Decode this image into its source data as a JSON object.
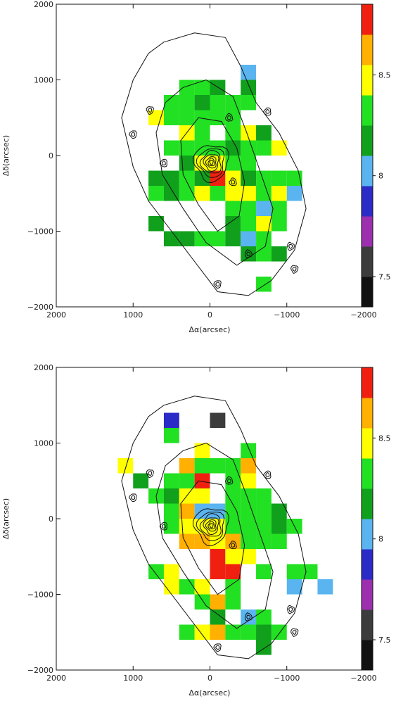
{
  "colors": {
    "black": "#111111",
    "darkgray": "#3c3c3c",
    "purple": "#9b2fae",
    "blue": "#2b2bc8",
    "lightblue": "#5ab4f0",
    "darkgreen": "#10a01c",
    "green": "#22e022",
    "yellow": "#ffff00",
    "orange": "#ffb000",
    "red": "#f02010"
  },
  "chart_data": [
    {
      "type": "heatmap",
      "title": "",
      "xlabel": "Δα(arcsec)",
      "ylabel": "Δδ(arcsec)",
      "xlim": [
        2000,
        -2000
      ],
      "ylim": [
        -2000,
        2000
      ],
      "xticks": [
        2000,
        1000,
        0,
        -1000,
        -2000
      ],
      "yticks": [
        -2000,
        -1000,
        0,
        1000,
        2000
      ],
      "xtick_labels": [
        "2000",
        "1000",
        "0",
        "−1000",
        "−2000"
      ],
      "ytick_labels": [
        "−2000",
        "−1000",
        "0",
        "1000",
        "2000"
      ],
      "colorbar": {
        "range": [
          7.35,
          8.85
        ],
        "ticks": [
          7.5,
          8,
          8.5
        ],
        "tick_labels": [
          "7.5",
          "8",
          "8.5"
        ],
        "bands": [
          "black",
          "darkgray",
          "purple",
          "blue",
          "lightblue",
          "darkgreen",
          "green",
          "yellow",
          "orange",
          "red"
        ]
      },
      "cell_size_arcsec": 200,
      "cells": [
        {
          "x": -500,
          "y": 1100,
          "c": "lightblue"
        },
        {
          "x": 300,
          "y": 900,
          "c": "green"
        },
        {
          "x": 100,
          "y": 900,
          "c": "green"
        },
        {
          "x": -100,
          "y": 900,
          "c": "darkgreen"
        },
        {
          "x": -500,
          "y": 900,
          "c": "darkgreen"
        },
        {
          "x": 500,
          "y": 700,
          "c": "green"
        },
        {
          "x": 300,
          "y": 700,
          "c": "green"
        },
        {
          "x": 100,
          "y": 700,
          "c": "darkgreen"
        },
        {
          "x": -100,
          "y": 700,
          "c": "green"
        },
        {
          "x": -300,
          "y": 700,
          "c": "green"
        },
        {
          "x": -500,
          "y": 700,
          "c": "green"
        },
        {
          "x": 700,
          "y": 500,
          "c": "yellow"
        },
        {
          "x": 500,
          "y": 500,
          "c": "green"
        },
        {
          "x": 300,
          "y": 500,
          "c": "green"
        },
        {
          "x": 100,
          "y": 500,
          "c": "green"
        },
        {
          "x": -100,
          "y": 500,
          "c": "green"
        },
        {
          "x": -300,
          "y": 500,
          "c": "green"
        },
        {
          "x": -500,
          "y": 300,
          "c": "yellow"
        },
        {
          "x": -700,
          "y": 300,
          "c": "darkgreen"
        },
        {
          "x": 300,
          "y": 300,
          "c": "yellow"
        },
        {
          "x": 100,
          "y": 300,
          "c": "green"
        },
        {
          "x": -300,
          "y": 300,
          "c": "green"
        },
        {
          "x": 500,
          "y": 100,
          "c": "green"
        },
        {
          "x": 300,
          "y": 100,
          "c": "green"
        },
        {
          "x": 100,
          "y": 100,
          "c": "green"
        },
        {
          "x": -100,
          "y": 100,
          "c": "green"
        },
        {
          "x": -300,
          "y": 100,
          "c": "darkgreen"
        },
        {
          "x": -500,
          "y": 100,
          "c": "green"
        },
        {
          "x": -700,
          "y": 100,
          "c": "green"
        },
        {
          "x": -900,
          "y": 100,
          "c": "yellow"
        },
        {
          "x": 300,
          "y": -100,
          "c": "darkgreen"
        },
        {
          "x": 100,
          "y": -100,
          "c": "yellow"
        },
        {
          "x": -100,
          "y": -100,
          "c": "yellow"
        },
        {
          "x": -300,
          "y": -100,
          "c": "green"
        },
        {
          "x": -500,
          "y": -100,
          "c": "green"
        },
        {
          "x": 500,
          "y": -300,
          "c": "darkgreen"
        },
        {
          "x": 300,
          "y": -300,
          "c": "green"
        },
        {
          "x": 100,
          "y": -300,
          "c": "darkgreen"
        },
        {
          "x": -100,
          "y": -300,
          "c": "red"
        },
        {
          "x": -300,
          "y": -300,
          "c": "yellow"
        },
        {
          "x": -500,
          "y": -300,
          "c": "darkgreen"
        },
        {
          "x": -700,
          "y": -300,
          "c": "green"
        },
        {
          "x": -900,
          "y": -300,
          "c": "green"
        },
        {
          "x": -1100,
          "y": -300,
          "c": "green"
        },
        {
          "x": 700,
          "y": -300,
          "c": "darkgreen"
        },
        {
          "x": 700,
          "y": -500,
          "c": "green"
        },
        {
          "x": 500,
          "y": -500,
          "c": "darkgreen"
        },
        {
          "x": 300,
          "y": -500,
          "c": "green"
        },
        {
          "x": 100,
          "y": -500,
          "c": "yellow"
        },
        {
          "x": -100,
          "y": -500,
          "c": "green"
        },
        {
          "x": -300,
          "y": -500,
          "c": "yellow"
        },
        {
          "x": -500,
          "y": -500,
          "c": "yellow"
        },
        {
          "x": -700,
          "y": -500,
          "c": "green"
        },
        {
          "x": -900,
          "y": -500,
          "c": "yellow"
        },
        {
          "x": -1100,
          "y": -500,
          "c": "lightblue"
        },
        {
          "x": -300,
          "y": -700,
          "c": "green"
        },
        {
          "x": -500,
          "y": -700,
          "c": "green"
        },
        {
          "x": -700,
          "y": -700,
          "c": "lightblue"
        },
        {
          "x": -900,
          "y": -700,
          "c": "green"
        },
        {
          "x": 700,
          "y": -900,
          "c": "darkgreen"
        },
        {
          "x": -300,
          "y": -900,
          "c": "darkgreen"
        },
        {
          "x": -500,
          "y": -900,
          "c": "green"
        },
        {
          "x": -700,
          "y": -900,
          "c": "yellow"
        },
        {
          "x": -900,
          "y": -900,
          "c": "green"
        },
        {
          "x": 500,
          "y": -1100,
          "c": "darkgreen"
        },
        {
          "x": 300,
          "y": -1100,
          "c": "darkgreen"
        },
        {
          "x": 100,
          "y": -1100,
          "c": "green"
        },
        {
          "x": -100,
          "y": -1100,
          "c": "green"
        },
        {
          "x": -300,
          "y": -1100,
          "c": "darkgreen"
        },
        {
          "x": -500,
          "y": -1100,
          "c": "lightblue"
        },
        {
          "x": -700,
          "y": -1100,
          "c": "green"
        },
        {
          "x": -500,
          "y": -1300,
          "c": "darkgreen"
        },
        {
          "x": -700,
          "y": -1300,
          "c": "green"
        },
        {
          "x": -900,
          "y": -1300,
          "c": "darkgreen"
        },
        {
          "x": -700,
          "y": -1700,
          "c": "green"
        }
      ]
    },
    {
      "type": "heatmap",
      "title": "",
      "xlabel": "Δα(arcsec)",
      "ylabel": "Δδ(arcsec)",
      "xlim": [
        2000,
        -2000
      ],
      "ylim": [
        -2000,
        2000
      ],
      "xticks": [
        2000,
        1000,
        0,
        -1000,
        -2000
      ],
      "yticks": [
        -2000,
        -1000,
        0,
        1000,
        2000
      ],
      "xtick_labels": [
        "2000",
        "1000",
        "0",
        "−1000",
        "−2000"
      ],
      "ytick_labels": [
        "−2000",
        "−1000",
        "0",
        "1000",
        "2000"
      ],
      "colorbar": {
        "range": [
          7.35,
          8.85
        ],
        "ticks": [
          7.5,
          8,
          8.5
        ],
        "tick_labels": [
          "7.5",
          "8",
          "8.5"
        ],
        "bands": [
          "black",
          "darkgray",
          "purple",
          "blue",
          "lightblue",
          "darkgreen",
          "green",
          "yellow",
          "orange",
          "red"
        ]
      },
      "cell_size_arcsec": 200,
      "cells": [
        {
          "x": 500,
          "y": 1300,
          "c": "blue"
        },
        {
          "x": -100,
          "y": 1300,
          "c": "darkgray"
        },
        {
          "x": 500,
          "y": 1100,
          "c": "green"
        },
        {
          "x": 100,
          "y": 900,
          "c": "yellow"
        },
        {
          "x": -500,
          "y": 900,
          "c": "green"
        },
        {
          "x": 1100,
          "y": 700,
          "c": "yellow"
        },
        {
          "x": 300,
          "y": 700,
          "c": "orange"
        },
        {
          "x": 100,
          "y": 700,
          "c": "green"
        },
        {
          "x": -100,
          "y": 700,
          "c": "green"
        },
        {
          "x": -300,
          "y": 700,
          "c": "green"
        },
        {
          "x": -500,
          "y": 700,
          "c": "orange"
        },
        {
          "x": 900,
          "y": 500,
          "c": "darkgreen"
        },
        {
          "x": 500,
          "y": 500,
          "c": "green"
        },
        {
          "x": 300,
          "y": 500,
          "c": "green"
        },
        {
          "x": 100,
          "y": 500,
          "c": "red"
        },
        {
          "x": -300,
          "y": 500,
          "c": "green"
        },
        {
          "x": -500,
          "y": 500,
          "c": "yellow"
        },
        {
          "x": 700,
          "y": 300,
          "c": "green"
        },
        {
          "x": 500,
          "y": 300,
          "c": "darkgreen"
        },
        {
          "x": 300,
          "y": 300,
          "c": "yellow"
        },
        {
          "x": 100,
          "y": 300,
          "c": "yellow"
        },
        {
          "x": -300,
          "y": 300,
          "c": "green"
        },
        {
          "x": -500,
          "y": 300,
          "c": "green"
        },
        {
          "x": -700,
          "y": 300,
          "c": "green"
        },
        {
          "x": 500,
          "y": 100,
          "c": "green"
        },
        {
          "x": 300,
          "y": 100,
          "c": "orange"
        },
        {
          "x": 100,
          "y": 100,
          "c": "lightblue"
        },
        {
          "x": -100,
          "y": 100,
          "c": "lightblue"
        },
        {
          "x": -300,
          "y": 100,
          "c": "green"
        },
        {
          "x": -500,
          "y": 100,
          "c": "green"
        },
        {
          "x": -700,
          "y": 100,
          "c": "green"
        },
        {
          "x": -900,
          "y": 100,
          "c": "darkgreen"
        },
        {
          "x": 500,
          "y": -100,
          "c": "green"
        },
        {
          "x": 300,
          "y": -100,
          "c": "yellow"
        },
        {
          "x": 100,
          "y": -100,
          "c": "yellow"
        },
        {
          "x": -100,
          "y": -100,
          "c": "yellow"
        },
        {
          "x": -300,
          "y": -100,
          "c": "green"
        },
        {
          "x": -500,
          "y": -100,
          "c": "green"
        },
        {
          "x": -700,
          "y": -100,
          "c": "green"
        },
        {
          "x": -900,
          "y": -100,
          "c": "darkgreen"
        },
        {
          "x": -1100,
          "y": -100,
          "c": "green"
        },
        {
          "x": 300,
          "y": -300,
          "c": "orange"
        },
        {
          "x": 100,
          "y": -300,
          "c": "orange"
        },
        {
          "x": -100,
          "y": -300,
          "c": "yellow"
        },
        {
          "x": -300,
          "y": -300,
          "c": "orange"
        },
        {
          "x": -500,
          "y": -300,
          "c": "green"
        },
        {
          "x": -700,
          "y": -300,
          "c": "green"
        },
        {
          "x": -900,
          "y": -300,
          "c": "green"
        },
        {
          "x": -100,
          "y": -500,
          "c": "red"
        },
        {
          "x": -300,
          "y": -500,
          "c": "yellow"
        },
        {
          "x": -500,
          "y": -500,
          "c": "yellow"
        },
        {
          "x": 700,
          "y": -700,
          "c": "green"
        },
        {
          "x": 500,
          "y": -700,
          "c": "yellow"
        },
        {
          "x": -100,
          "y": -700,
          "c": "red"
        },
        {
          "x": -300,
          "y": -700,
          "c": "red"
        },
        {
          "x": -700,
          "y": -700,
          "c": "green"
        },
        {
          "x": -1100,
          "y": -700,
          "c": "green"
        },
        {
          "x": -1300,
          "y": -700,
          "c": "green"
        },
        {
          "x": 500,
          "y": -900,
          "c": "yellow"
        },
        {
          "x": 300,
          "y": -900,
          "c": "green"
        },
        {
          "x": 100,
          "y": -900,
          "c": "yellow"
        },
        {
          "x": -300,
          "y": -900,
          "c": "green"
        },
        {
          "x": -1100,
          "y": -900,
          "c": "lightblue"
        },
        {
          "x": -1500,
          "y": -900,
          "c": "lightblue"
        },
        {
          "x": 100,
          "y": -1100,
          "c": "green"
        },
        {
          "x": -100,
          "y": -1100,
          "c": "orange"
        },
        {
          "x": -300,
          "y": -1100,
          "c": "green"
        },
        {
          "x": -100,
          "y": -1300,
          "c": "darkgreen"
        },
        {
          "x": -500,
          "y": -1300,
          "c": "lightblue"
        },
        {
          "x": -700,
          "y": -1300,
          "c": "green"
        },
        {
          "x": 300,
          "y": -1500,
          "c": "green"
        },
        {
          "x": 100,
          "y": -1500,
          "c": "yellow"
        },
        {
          "x": -100,
          "y": -1500,
          "c": "orange"
        },
        {
          "x": -300,
          "y": -1500,
          "c": "green"
        },
        {
          "x": -500,
          "y": -1500,
          "c": "green"
        },
        {
          "x": -700,
          "y": -1500,
          "c": "darkgreen"
        },
        {
          "x": -900,
          "y": -1500,
          "c": "green"
        },
        {
          "x": -700,
          "y": -1700,
          "c": "darkgreen"
        }
      ]
    }
  ]
}
